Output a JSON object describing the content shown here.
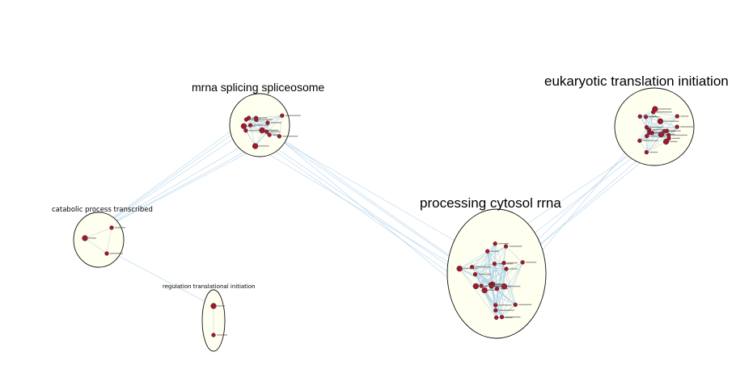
{
  "clusters": [
    {
      "id": "mrna",
      "title": "mrna splicing spliceosome",
      "node_count": 14
    },
    {
      "id": "euk",
      "title": "eukaryotic translation initiation",
      "node_count": 20
    },
    {
      "id": "proc",
      "title": "processing cytosol rrna",
      "node_count": 24
    },
    {
      "id": "catab",
      "title": "catabolic process transcribed",
      "node_count": 3
    },
    {
      "id": "regul",
      "title": "regulation translational initiation",
      "node_count": 2
    }
  ],
  "colors": {
    "cluster_fill": "#fffff0",
    "cluster_stroke": "#111111",
    "node": "#9b1b2e",
    "edge": "#a9cfe6"
  }
}
